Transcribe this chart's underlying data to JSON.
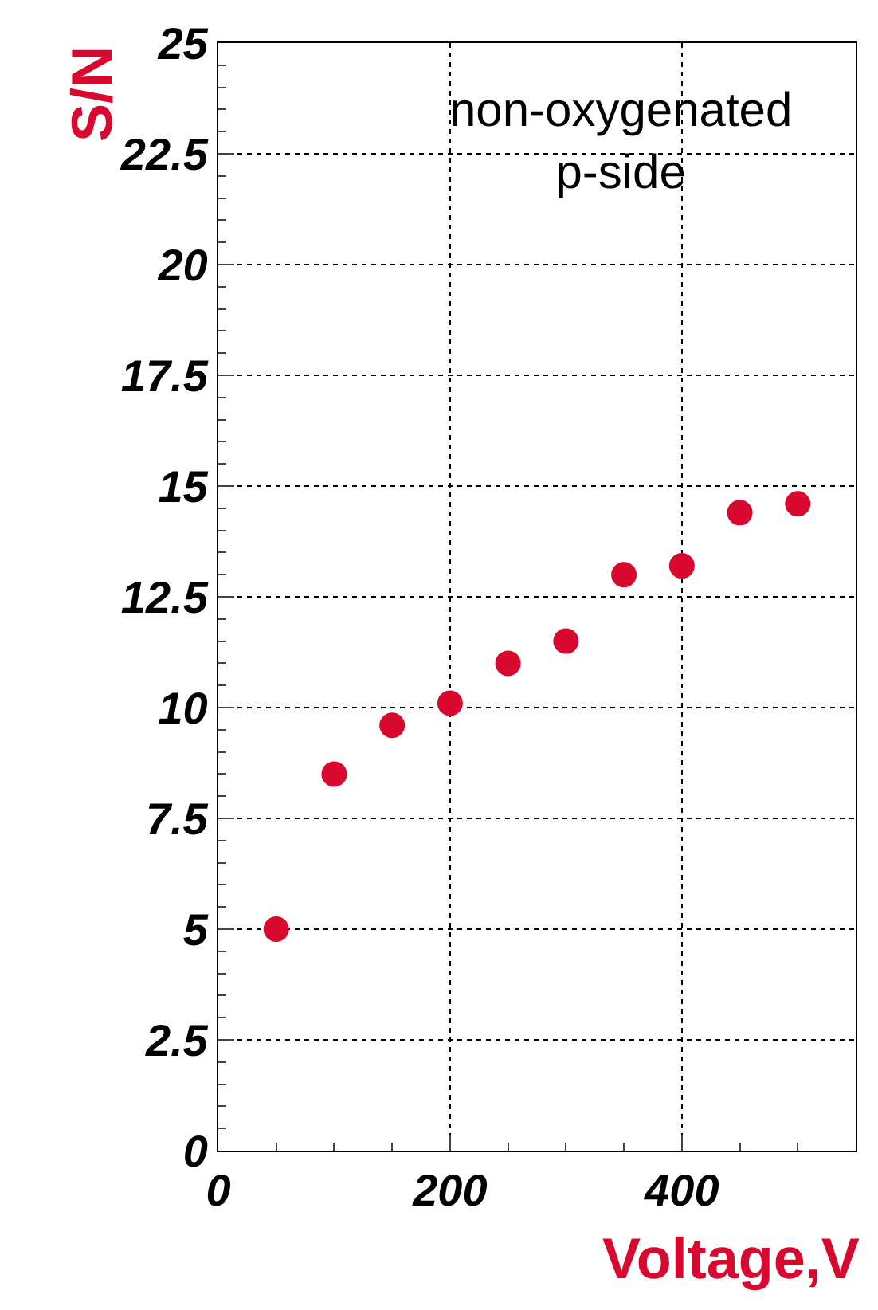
{
  "chart_data": {
    "type": "scatter",
    "xlabel": "Voltage,V",
    "ylabel": "S/N",
    "annotations": [
      "non-oxygenated\np-side"
    ],
    "x": [
      50,
      100,
      150,
      200,
      250,
      300,
      350,
      400,
      450,
      500
    ],
    "series": [
      {
        "color": "#d9082e",
        "values": [
          5.0,
          8.5,
          9.6,
          10.1,
          11.0,
          11.5,
          13.0,
          13.2,
          14.4,
          14.6
        ]
      }
    ],
    "xlim": [
      0,
      550
    ],
    "xticks": [
      0,
      200,
      400
    ],
    "ylim": [
      0,
      25
    ],
    "yticks": [
      0,
      2.5,
      5,
      7.5,
      10,
      12.5,
      15,
      17.5,
      20,
      22.5,
      25
    ],
    "grid": true,
    "marker": "circle"
  }
}
